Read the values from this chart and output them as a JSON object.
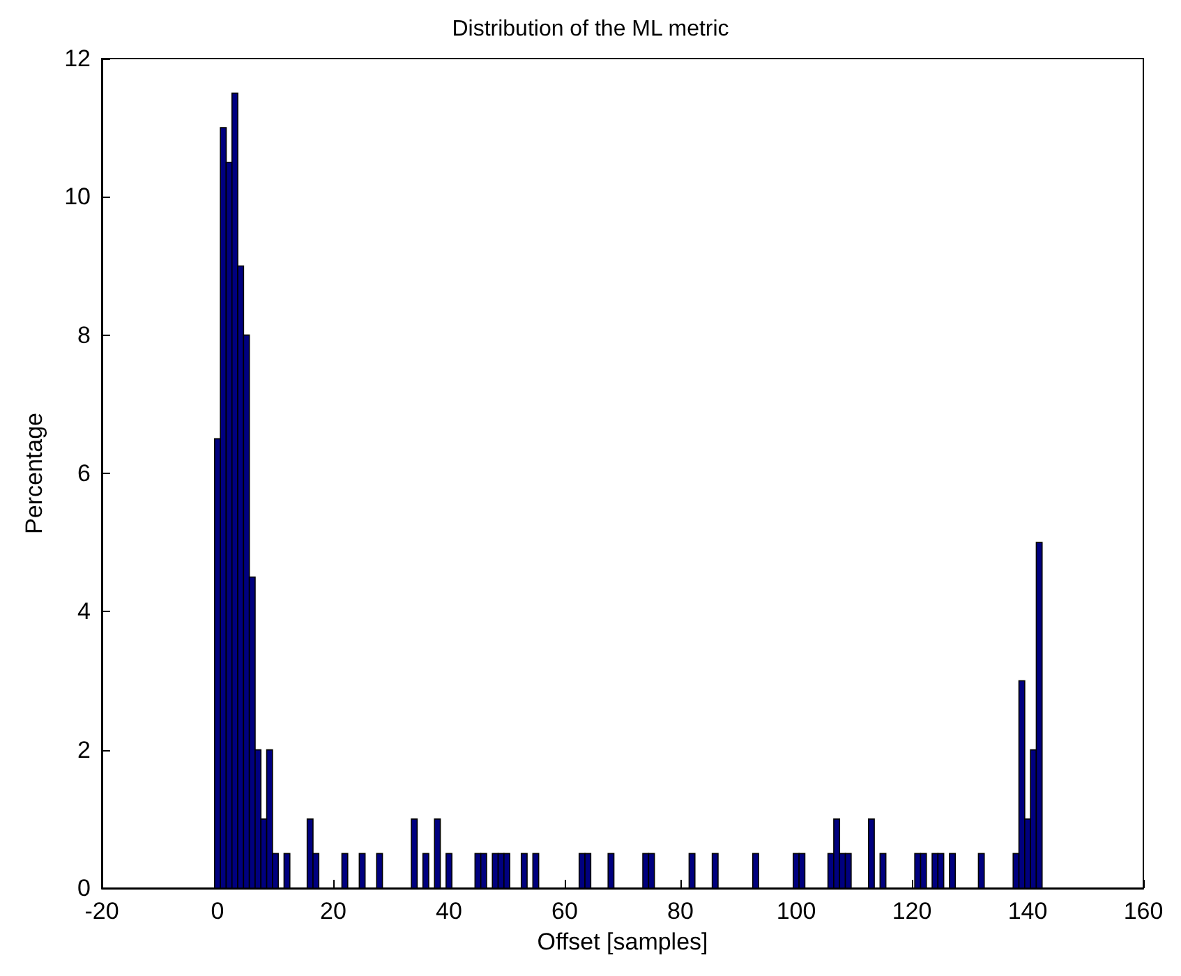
{
  "chart_data": {
    "type": "histogram",
    "title": "Distribution of the ML metric",
    "xlabel": "Offset [samples]",
    "ylabel": "Percentage",
    "color": "#00007f",
    "bins": [
      -0.5,
      0.5,
      1.5,
      2.5,
      3.5,
      4.5,
      5.5,
      6.5,
      7.5,
      8.5,
      9.5,
      10.5,
      11.5,
      12.5,
      13.5,
      14.5,
      15.5,
      16.5,
      17.5,
      18.5,
      19.5,
      20.5,
      21.5,
      22.5,
      23.5,
      24.5,
      25.5,
      26.5,
      27.5,
      28.5,
      29.5,
      30.5,
      31.5,
      32.5,
      33.5,
      34.5,
      35.5,
      36.5,
      37.5,
      38.5,
      39.5,
      40.5,
      41.5,
      42.5,
      43.5,
      44.5,
      45.5,
      46.5,
      47.5,
      48.5,
      49.5,
      50.5,
      51.5,
      52.5,
      53.5,
      54.5,
      55.5,
      56.5,
      57.5,
      58.5,
      59.5,
      60.5,
      61.5,
      62.5,
      63.5,
      64.5,
      65.5,
      66.5,
      67.5,
      68.5,
      69.5,
      70.5,
      71.5,
      72.5,
      73.5,
      74.5,
      75.5,
      76.5,
      77.5,
      78.5,
      79.5,
      80.5,
      81.5,
      82.5,
      83.5,
      84.5,
      85.5,
      86.5,
      87.5,
      88.5,
      89.5,
      90.5,
      91.5,
      92.5,
      93.5,
      94.5,
      95.5,
      96.5,
      97.5,
      98.5,
      99.5,
      100.5,
      101.5,
      102.5,
      103.5,
      104.5,
      105.5,
      106.5,
      107.5,
      108.5,
      109.5,
      110.5,
      111.5,
      112.5,
      113.5,
      114.5,
      115.5,
      116.5,
      117.5,
      118.5,
      119.5,
      120.5,
      121.5,
      122.5,
      123.5,
      124.5,
      125.5,
      126.5,
      127.5,
      128.5,
      129.5,
      130.5,
      131.5,
      132.5,
      133.5,
      134.5,
      135.5,
      136.5,
      137.5,
      138.5,
      139.5,
      140.5,
      141.5,
      142.5
    ],
    "values": [
      6.5,
      11,
      10.5,
      11.5,
      9,
      8,
      4.5,
      2,
      1,
      2,
      0.5,
      0,
      0.5,
      0,
      0,
      0,
      1,
      0.5,
      0,
      0,
      0,
      0,
      0.5,
      0,
      0,
      0.5,
      0,
      0,
      0.5,
      0,
      0,
      0,
      0,
      0,
      1,
      0,
      0.5,
      0,
      1,
      0,
      0.5,
      0,
      0,
      0,
      0,
      0.5,
      0.5,
      0,
      0.5,
      0.5,
      0.5,
      0,
      0,
      0.5,
      0,
      0.5,
      0,
      0,
      0,
      0,
      0,
      0,
      0,
      0.5,
      0.5,
      0,
      0,
      0,
      0.5,
      0,
      0,
      0,
      0,
      0,
      0.5,
      0.5,
      0,
      0,
      0,
      0,
      0,
      0,
      0.5,
      0,
      0,
      0,
      0.5,
      0,
      0,
      0,
      0,
      0,
      0,
      0.5,
      0,
      0,
      0,
      0,
      0,
      0,
      0.5,
      0.5,
      0,
      0,
      0,
      0,
      0.5,
      1,
      0.5,
      0.5,
      0,
      0,
      0,
      1,
      0,
      0.5,
      0,
      0,
      0,
      0,
      0,
      0.5,
      0.5,
      0,
      0.5,
      0.5,
      0,
      0.5,
      0,
      0,
      0,
      0,
      0.5,
      0,
      0,
      0,
      0,
      0,
      0.5,
      3,
      1,
      2,
      5
    ],
    "xlim": [
      -20,
      160
    ],
    "xticks": [
      -20,
      0,
      20,
      40,
      60,
      80,
      100,
      120,
      140,
      160
    ],
    "ylim": [
      0,
      12
    ],
    "yticks": [
      0,
      2,
      4,
      6,
      8,
      10,
      12
    ],
    "grid": false
  }
}
